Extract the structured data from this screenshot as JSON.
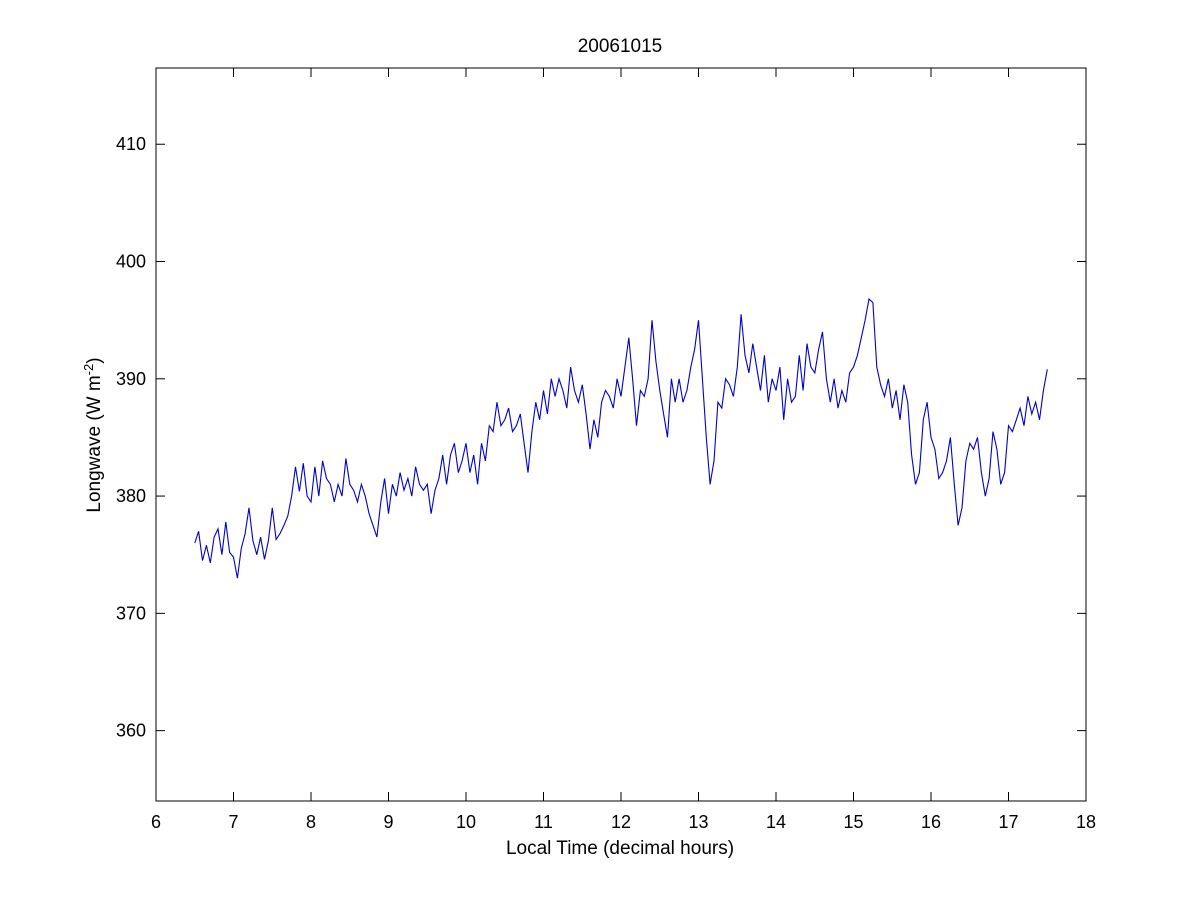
{
  "chart_data": {
    "type": "line",
    "title": "20061015",
    "xlabel": "Local Time (decimal hours)",
    "ylabel_main": "Longwave (W m",
    "ylabel_sup": "-2",
    "ylabel_close": ")",
    "xlim": [
      6,
      18
    ],
    "ylim": [
      354,
      416.5
    ],
    "xticks": [
      6,
      7,
      8,
      9,
      10,
      11,
      12,
      13,
      14,
      15,
      16,
      17,
      18
    ],
    "yticks": [
      360,
      370,
      380,
      390,
      400,
      410
    ],
    "grid": false,
    "series_color": "#0000cc",
    "series": [
      {
        "x": [
          6.5,
          6.55,
          6.6,
          6.65,
          6.7,
          6.75,
          6.8,
          6.85,
          6.9,
          6.95,
          7.0,
          7.05,
          7.1,
          7.15,
          7.2,
          7.25,
          7.3,
          7.35,
          7.4,
          7.45,
          7.5,
          7.55,
          7.6,
          7.65,
          7.7,
          7.75,
          7.8,
          7.85,
          7.9,
          7.95,
          8.0,
          8.05,
          8.1,
          8.15,
          8.2,
          8.25,
          8.3,
          8.35,
          8.4,
          8.45,
          8.5,
          8.55,
          8.6,
          8.65,
          8.7,
          8.75,
          8.8,
          8.85,
          8.9,
          8.95,
          9.0,
          9.05,
          9.1,
          9.15,
          9.2,
          9.25,
          9.3,
          9.35,
          9.4,
          9.45,
          9.5,
          9.55,
          9.6,
          9.65,
          9.7,
          9.75,
          9.8,
          9.85,
          9.9,
          9.95,
          10.0,
          10.05,
          10.1,
          10.15,
          10.2,
          10.25,
          10.3,
          10.35,
          10.4,
          10.45,
          10.5,
          10.55,
          10.6,
          10.65,
          10.7,
          10.75,
          10.8,
          10.85,
          10.9,
          10.95,
          11.0,
          11.05,
          11.1,
          11.15,
          11.2,
          11.25,
          11.3,
          11.35,
          11.4,
          11.45,
          11.5,
          11.55,
          11.6,
          11.65,
          11.7,
          11.75,
          11.8,
          11.85,
          11.9,
          11.95,
          12.0,
          12.05,
          12.1,
          12.15,
          12.2,
          12.25,
          12.3,
          12.35,
          12.4,
          12.45,
          12.5,
          12.55,
          12.6,
          12.65,
          12.7,
          12.75,
          12.8,
          12.85,
          12.9,
          12.95,
          13.0,
          13.05,
          13.1,
          13.15,
          13.2,
          13.25,
          13.3,
          13.35,
          13.4,
          13.45,
          13.5,
          13.55,
          13.6,
          13.65,
          13.7,
          13.75,
          13.8,
          13.85,
          13.9,
          13.95,
          14.0,
          14.05,
          14.1,
          14.15,
          14.2,
          14.25,
          14.3,
          14.35,
          14.4,
          14.45,
          14.5,
          14.55,
          14.6,
          14.65,
          14.7,
          14.75,
          14.8,
          14.85,
          14.9,
          14.95,
          15.0,
          15.05,
          15.1,
          15.15,
          15.2,
          15.25,
          15.3,
          15.35,
          15.4,
          15.45,
          15.5,
          15.55,
          15.6,
          15.65,
          15.7,
          15.75,
          15.8,
          15.85,
          15.9,
          15.95,
          16.0,
          16.05,
          16.1,
          16.15,
          16.2,
          16.25,
          16.3,
          16.35,
          16.4,
          16.45,
          16.5,
          16.55,
          16.6,
          16.65,
          16.7,
          16.75,
          16.8,
          16.85,
          16.9,
          16.95,
          17.0,
          17.05,
          17.1,
          17.15,
          17.2,
          17.25,
          17.3,
          17.35,
          17.4,
          17.45,
          17.5
        ],
        "y": [
          376.0,
          377.0,
          374.5,
          375.8,
          374.3,
          376.5,
          377.2,
          375.0,
          377.8,
          375.2,
          374.8,
          373.0,
          375.5,
          376.8,
          379.0,
          376.2,
          375.0,
          376.5,
          374.6,
          376.2,
          379.0,
          376.3,
          376.8,
          377.5,
          378.3,
          380.0,
          382.5,
          380.4,
          382.8,
          380.0,
          379.5,
          382.5,
          380.0,
          383.0,
          381.5,
          381.0,
          379.5,
          381.0,
          380.0,
          383.2,
          381.0,
          380.5,
          379.5,
          381.0,
          380.0,
          378.5,
          377.5,
          376.5,
          379.5,
          381.5,
          378.5,
          381.0,
          380.0,
          382.0,
          380.5,
          381.5,
          380.0,
          382.5,
          381.0,
          380.5,
          381.0,
          378.5,
          380.5,
          381.5,
          383.5,
          381.0,
          383.5,
          384.5,
          382.0,
          383.0,
          384.5,
          382.0,
          383.5,
          381.0,
          384.5,
          383.0,
          386.0,
          385.5,
          388.0,
          386.0,
          386.5,
          387.5,
          385.5,
          386.0,
          387.0,
          384.5,
          382.0,
          385.5,
          388.0,
          386.5,
          389.0,
          387.0,
          390.0,
          388.5,
          390.0,
          389.0,
          387.5,
          391.0,
          389.0,
          388.0,
          389.5,
          387.0,
          384.0,
          386.5,
          385.0,
          388.0,
          389.0,
          388.5,
          387.5,
          390.0,
          388.5,
          391.0,
          393.5,
          390.0,
          386.0,
          389.0,
          388.5,
          390.0,
          395.0,
          391.5,
          389.0,
          387.0,
          385.0,
          390.0,
          388.0,
          390.0,
          388.0,
          389.0,
          391.0,
          392.5,
          395.0,
          390.0,
          385.0,
          381.0,
          383.0,
          388.0,
          387.5,
          390.0,
          389.5,
          388.5,
          391.0,
          395.5,
          392.0,
          390.5,
          393.0,
          391.0,
          389.0,
          392.0,
          388.0,
          390.0,
          389.0,
          391.0,
          386.5,
          390.0,
          388.0,
          388.5,
          392.0,
          389.0,
          393.0,
          391.0,
          390.5,
          392.5,
          394.0,
          390.0,
          388.0,
          390.0,
          387.5,
          389.0,
          388.0,
          390.5,
          391.0,
          392.0,
          393.5,
          395.0,
          396.8,
          396.5,
          391.0,
          389.5,
          388.5,
          390.0,
          387.5,
          389.0,
          386.5,
          389.5,
          388.0,
          383.5,
          381.0,
          382.0,
          386.5,
          388.0,
          385.0,
          384.0,
          381.5,
          382.0,
          383.0,
          385.0,
          381.0,
          377.5,
          379.0,
          383.0,
          384.5,
          384.0,
          385.0,
          382.0,
          380.0,
          381.5,
          385.5,
          384.0,
          381.0,
          382.0,
          386.0,
          385.5,
          386.5,
          387.5,
          386.0,
          388.5,
          387.0,
          388.0,
          386.5,
          389.0,
          390.8
        ]
      }
    ]
  }
}
